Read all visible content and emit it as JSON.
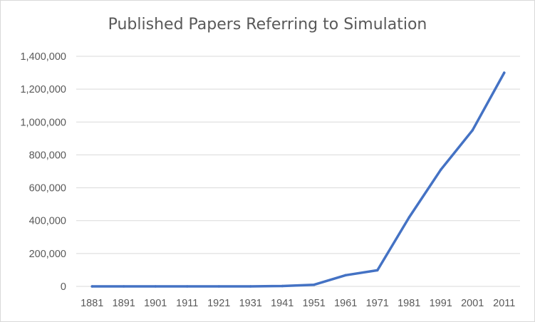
{
  "chart_data": {
    "type": "line",
    "title": "Published Papers Referring to Simulation",
    "xlabel": "",
    "ylabel": "",
    "categories": [
      "1881",
      "1891",
      "1901",
      "1911",
      "1921",
      "1931",
      "1941",
      "1951",
      "1961",
      "1971",
      "1981",
      "1991",
      "2001",
      "2011"
    ],
    "series": [
      {
        "values": [
          0,
          0,
          0,
          0,
          0,
          0,
          2000,
          10000,
          68000,
          98000,
          420000,
          710000,
          950000,
          1300000
        ]
      }
    ],
    "ylim": [
      0,
      1400000
    ],
    "yticks": [
      "0",
      "200,000",
      "400,000",
      "600,000",
      "800,000",
      "1,000,000",
      "1,200,000",
      "1,400,000"
    ],
    "grid": true,
    "legend": "none",
    "colors": {
      "line": "#4472c4",
      "grid": "#d9d9d9",
      "text": "#595959"
    }
  }
}
